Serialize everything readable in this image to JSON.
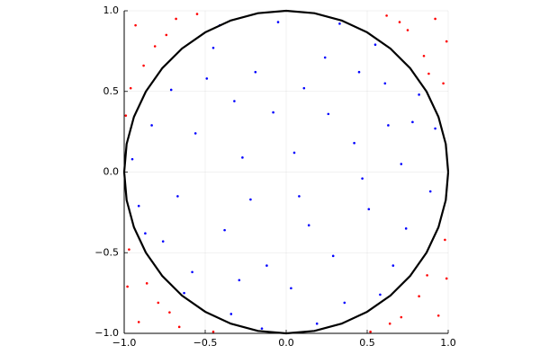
{
  "chart_data": {
    "type": "scatter",
    "xlim": [
      -1,
      1
    ],
    "ylim": [
      -1,
      1
    ],
    "xticks": [
      {
        "value": -1,
        "label": "−1.0"
      },
      {
        "value": -0.5,
        "label": "−0.5"
      },
      {
        "value": 0,
        "label": "0.0"
      },
      {
        "value": 0.5,
        "label": "0.5"
      },
      {
        "value": 1,
        "label": "1.0"
      }
    ],
    "yticks": [
      {
        "value": -1,
        "label": "−1.0"
      },
      {
        "value": -0.5,
        "label": "−0.5"
      },
      {
        "value": 0,
        "label": "0.0"
      },
      {
        "value": 0.5,
        "label": "0.5"
      },
      {
        "value": 1,
        "label": "1.0"
      }
    ],
    "grid": true,
    "series": [
      {
        "color": "#ff0000",
        "x": [
          0.92,
          0.85,
          0.97,
          0.75,
          0.62,
          0.99,
          0.88,
          0.7,
          -0.93,
          -0.81,
          -0.96,
          -0.68,
          -0.88,
          -0.74,
          -0.99,
          -0.55,
          -0.91,
          -0.79,
          -0.97,
          -0.66,
          -0.86,
          -0.72,
          -0.98,
          -0.45,
          0.94,
          0.82,
          0.98,
          0.64,
          0.87,
          0.71,
          0.99,
          0.52
        ],
        "values": [
          0.95,
          0.72,
          0.55,
          0.88,
          0.97,
          0.81,
          0.61,
          0.93,
          0.91,
          0.78,
          0.52,
          0.95,
          0.66,
          0.85,
          0.35,
          0.98,
          -0.93,
          -0.81,
          -0.48,
          -0.96,
          -0.69,
          -0.87,
          -0.71,
          -0.99,
          -0.89,
          -0.77,
          -0.42,
          -0.94,
          -0.64,
          -0.9,
          -0.66,
          -0.99
        ]
      },
      {
        "color": "#0000ff",
        "x": [
          0.05,
          -0.32,
          0.51,
          -0.67,
          0.24,
          -0.12,
          0.78,
          -0.45,
          0.36,
          -0.83,
          0.61,
          -0.58,
          0.14,
          -0.27,
          0.89,
          -0.05,
          0.42,
          -0.71,
          0.19,
          -0.38,
          0.66,
          -0.91,
          0.03,
          0.55,
          -0.19,
          0.29,
          -0.56,
          0.82,
          -0.34,
          0.71,
          -0.08,
          0.47,
          -0.76,
          0.11,
          -0.49,
          0.33,
          -0.95,
          0.58,
          -0.22,
          0.92,
          -0.63,
          0.26,
          -0.41,
          0.74,
          -0.15,
          0.08,
          -0.87,
          0.45,
          -0.29,
          0.63
        ],
        "values": [
          0.12,
          0.44,
          -0.23,
          -0.15,
          0.71,
          -0.58,
          0.31,
          0.77,
          -0.81,
          0.29,
          0.55,
          -0.62,
          -0.33,
          0.09,
          -0.12,
          0.93,
          0.18,
          0.51,
          -0.94,
          -0.36,
          -0.58,
          -0.21,
          -0.72,
          0.79,
          0.62,
          -0.52,
          0.24,
          0.48,
          -0.88,
          0.05,
          0.37,
          -0.04,
          -0.43,
          0.52,
          0.58,
          0.92,
          0.08,
          -0.76,
          -0.17,
          0.27,
          -0.75,
          0.36,
          0.91,
          -0.35,
          -0.97,
          -0.15,
          -0.38,
          0.62,
          -0.67,
          0.29
        ]
      },
      {
        "type": "line",
        "color": "#000000",
        "x": [
          1,
          0.985,
          0.94,
          0.866,
          0.766,
          0.643,
          0.5,
          0.342,
          0.174,
          0,
          -0.174,
          -0.342,
          -0.5,
          -0.643,
          -0.766,
          -0.866,
          -0.94,
          -0.985,
          -1,
          -0.985,
          -0.94,
          -0.866,
          -0.766,
          -0.643,
          -0.5,
          -0.342,
          -0.174,
          0,
          0.174,
          0.342,
          0.5,
          0.643,
          0.766,
          0.866,
          0.94,
          0.985,
          1
        ],
        "values": [
          0,
          0.174,
          0.342,
          0.5,
          0.643,
          0.766,
          0.866,
          0.94,
          0.985,
          1,
          0.985,
          0.94,
          0.866,
          0.766,
          0.643,
          0.5,
          0.342,
          0.174,
          0,
          -0.174,
          -0.342,
          -0.5,
          -0.643,
          -0.766,
          -0.866,
          -0.94,
          -0.985,
          -1,
          -0.985,
          -0.94,
          -0.866,
          -0.766,
          -0.643,
          -0.5,
          -0.342,
          -0.174,
          0
        ]
      }
    ]
  }
}
